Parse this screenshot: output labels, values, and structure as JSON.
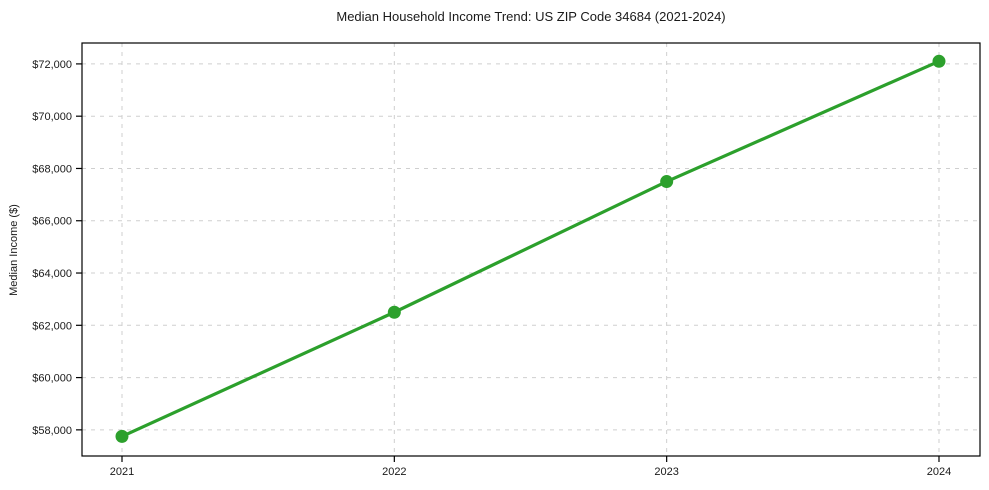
{
  "chart_data": {
    "type": "line",
    "title": "Median Household Income Trend: US ZIP Code 34684 (2021-2024)",
    "xlabel": "",
    "ylabel": "Median Income ($)",
    "categories": [
      "2021",
      "2022",
      "2023",
      "2024"
    ],
    "series": [
      {
        "name": "Median Income",
        "values": [
          57750,
          62500,
          67500,
          72100
        ]
      }
    ],
    "y_ticks": [
      58000,
      60000,
      62000,
      64000,
      66000,
      68000,
      70000,
      72000
    ],
    "y_tick_labels": [
      "$58,000",
      "$60,000",
      "$62,000",
      "$64,000",
      "$66,000",
      "$68,000",
      "$70,000",
      "$72,000"
    ],
    "ylim": [
      57000,
      72800
    ],
    "grid": "both-dashed",
    "legend_position": "none",
    "marker": "circle",
    "colors": {
      "line": "#2ca02c",
      "marker": "#2ca02c",
      "grid": "#cfcfcf",
      "text": "#1a1a1a",
      "spine": "#000000",
      "background": "#ffffff"
    }
  }
}
